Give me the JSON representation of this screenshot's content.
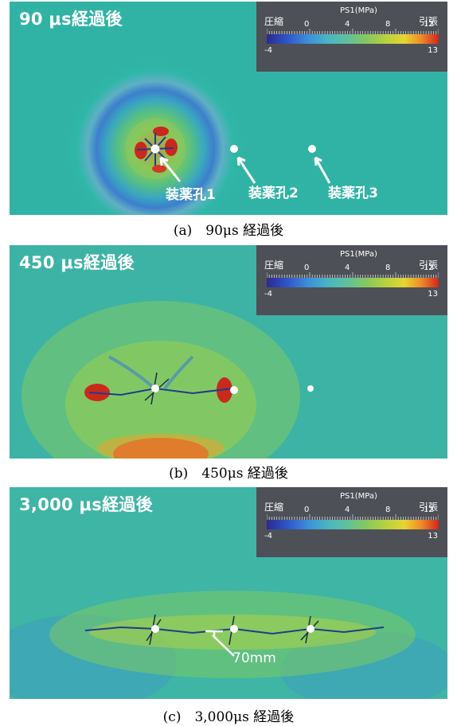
{
  "legend": {
    "compression_label": "圧縮",
    "variable_label": "PS1(MPa)",
    "tension_label": "引張",
    "ticks": [
      "0",
      "4",
      "8",
      "12"
    ],
    "min": "-4",
    "max": "13",
    "colormap": [
      "#2b2b8e",
      "#3d8fd9",
      "#5ec0a0",
      "#b9d23d",
      "#ef8a29",
      "#d1261d"
    ]
  },
  "panels": [
    {
      "time_label": "90 μs経過後",
      "caption": "(a)　90μs 経過後",
      "hole_labels": [
        "装薬孔1",
        "装薬孔2",
        "装薬孔3"
      ]
    },
    {
      "time_label": "450 μs経過後",
      "caption": "(b)　450μs 経過後"
    },
    {
      "time_label": "3,000 μs経過後",
      "caption": "(c)　3,000μs 経過後",
      "dimension_label": "70mm"
    }
  ]
}
